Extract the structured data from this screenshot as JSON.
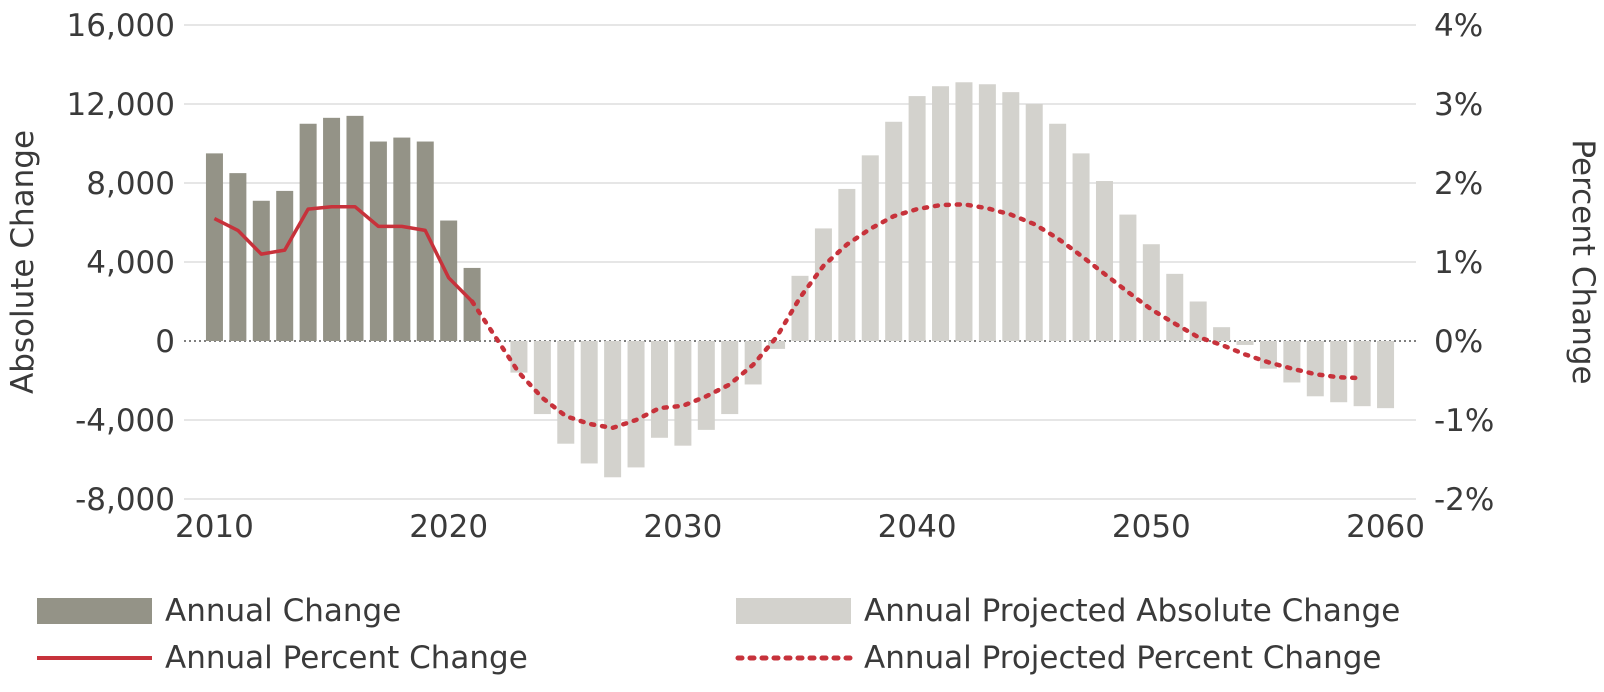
{
  "chart_data": {
    "type": "bar",
    "x": [
      2010,
      2011,
      2012,
      2013,
      2014,
      2015,
      2016,
      2017,
      2018,
      2019,
      2020,
      2021,
      2022,
      2023,
      2024,
      2025,
      2026,
      2027,
      2028,
      2029,
      2030,
      2031,
      2032,
      2033,
      2034,
      2035,
      2036,
      2037,
      2038,
      2039,
      2040,
      2041,
      2042,
      2043,
      2044,
      2045,
      2046,
      2047,
      2048,
      2049,
      2050,
      2051,
      2052,
      2053,
      2054,
      2055,
      2056,
      2057,
      2058,
      2059,
      2060
    ],
    "series": [
      {
        "name": "Annual Change",
        "kind": "bar",
        "color": "#949387",
        "x": [
          2010,
          2011,
          2012,
          2013,
          2014,
          2015,
          2016,
          2017,
          2018,
          2019,
          2020,
          2021
        ],
        "values": [
          9500,
          8500,
          7100,
          7600,
          11000,
          11300,
          11400,
          10100,
          10300,
          10100,
          6100,
          3700
        ]
      },
      {
        "name": "Annual Projected Absolute Change",
        "kind": "bar",
        "color": "#d3d2cd",
        "x": [
          2022,
          2023,
          2024,
          2025,
          2026,
          2027,
          2028,
          2029,
          2030,
          2031,
          2032,
          2033,
          2034,
          2035,
          2036,
          2037,
          2038,
          2039,
          2040,
          2041,
          2042,
          2043,
          2044,
          2045,
          2046,
          2047,
          2048,
          2049,
          2050,
          2051,
          2052,
          2053,
          2054,
          2055,
          2056,
          2057,
          2058,
          2059,
          2060
        ],
        "values": [
          0,
          -1600,
          -3700,
          -5200,
          -6200,
          -6900,
          -6400,
          -4900,
          -5300,
          -4500,
          -3700,
          -2200,
          -400,
          3300,
          5700,
          7700,
          9400,
          11100,
          12400,
          12900,
          13100,
          13000,
          12600,
          12000,
          11000,
          9500,
          8100,
          6400,
          4900,
          3400,
          2000,
          700,
          -200,
          -1400,
          -2100,
          -2800,
          -3100,
          -3300,
          -3400
        ]
      },
      {
        "name": "Annual Percent Change",
        "kind": "line",
        "axis": "right",
        "color": "#c7323b",
        "x": [
          2010,
          2011,
          2012,
          2013,
          2014,
          2015,
          2016,
          2017,
          2018,
          2019,
          2020,
          2021
        ],
        "values": [
          1.55,
          1.4,
          1.1,
          1.15,
          1.67,
          1.7,
          1.7,
          1.45,
          1.45,
          1.4,
          0.8,
          0.5
        ]
      },
      {
        "name": "Annual Projected Percent Change",
        "kind": "line",
        "style": "dotted",
        "axis": "right",
        "color": "#c7323b",
        "x": [
          2021,
          2022,
          2023,
          2024,
          2025,
          2026,
          2027,
          2028,
          2029,
          2030,
          2031,
          2032,
          2033,
          2034,
          2035,
          2036,
          2037,
          2038,
          2039,
          2040,
          2041,
          2042,
          2043,
          2044,
          2045,
          2046,
          2047,
          2048,
          2049,
          2050,
          2051,
          2052,
          2053,
          2054,
          2055,
          2056,
          2057,
          2058,
          2059
        ],
        "values": [
          0.5,
          0.05,
          -0.4,
          -0.72,
          -0.95,
          -1.05,
          -1.1,
          -1.0,
          -0.85,
          -0.82,
          -0.7,
          -0.55,
          -0.3,
          0.05,
          0.55,
          0.95,
          1.22,
          1.42,
          1.58,
          1.67,
          1.72,
          1.73,
          1.68,
          1.6,
          1.48,
          1.3,
          1.08,
          0.85,
          0.62,
          0.4,
          0.22,
          0.05,
          -0.05,
          -0.17,
          -0.27,
          -0.35,
          -0.42,
          -0.46,
          -0.47
        ]
      }
    ],
    "y_left": {
      "label": "Absolute Change",
      "range": [
        -8000,
        16000
      ],
      "ticks": [
        16000,
        12000,
        8000,
        4000,
        0,
        -4000,
        -8000
      ],
      "tick_labels": [
        "16,000",
        "12,000",
        "8,000",
        "4,000",
        "0",
        "-4,000",
        "-8,000"
      ]
    },
    "y_right": {
      "label": "Percent Change",
      "range": [
        -2,
        4
      ],
      "ticks": [
        4,
        3,
        2,
        1,
        0,
        -1,
        -2
      ],
      "tick_labels": [
        "4%",
        "3%",
        "2%",
        "1%",
        "0%",
        "-1%",
        "-2%"
      ]
    },
    "x_axis": {
      "range": [
        2008.7,
        2061.3
      ],
      "ticks": [
        2010,
        2020,
        2030,
        2040,
        2050,
        2060
      ],
      "tick_labels": [
        "2010",
        "2020",
        "2030",
        "2040",
        "2050",
        "2060"
      ]
    },
    "grid": true,
    "zero_line": "dotted",
    "legend": {
      "placement": "bottom",
      "items": [
        "Annual Change",
        "Annual Projected Absolute Change",
        "Annual Percent Change",
        "Annual Projected Percent Change"
      ]
    }
  }
}
